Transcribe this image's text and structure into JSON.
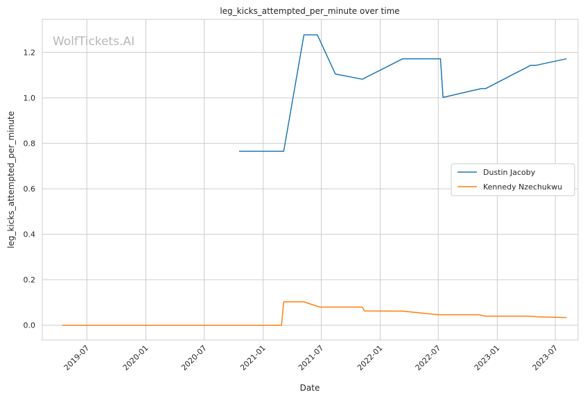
{
  "chart_data": {
    "type": "line",
    "title": "leg_kicks_attempted_per_minute over time",
    "xlabel": "Date",
    "ylabel": "leg_kicks_attempted_per_minute",
    "watermark": "WolfTickets.AI",
    "xlim": [
      "2019-02-12",
      "2023-09-10"
    ],
    "ylim": [
      -0.065,
      1.345
    ],
    "xticks": [
      "2019-07",
      "2020-01",
      "2020-07",
      "2021-01",
      "2021-07",
      "2022-01",
      "2022-07",
      "2023-01",
      "2023-07"
    ],
    "yticks": [
      "0.0",
      "0.2",
      "0.4",
      "0.6",
      "0.8",
      "1.0",
      "1.2"
    ],
    "grid": true,
    "legend_position": "center-right",
    "series": [
      {
        "name": "Dustin Jacoby",
        "color": "#1f77b4",
        "points": [
          [
            "2020-10-18",
            0.765
          ],
          [
            "2021-03-06",
            0.765
          ],
          [
            "2021-05-08",
            1.277
          ],
          [
            "2021-06-19",
            1.277
          ],
          [
            "2021-08-14",
            1.105
          ],
          [
            "2021-11-06",
            1.082
          ],
          [
            "2022-03-12",
            1.172
          ],
          [
            "2022-07-08",
            1.172
          ],
          [
            "2022-07-16",
            1.002
          ],
          [
            "2022-11-12",
            1.041
          ],
          [
            "2022-11-26",
            1.041
          ],
          [
            "2023-04-15",
            1.143
          ],
          [
            "2023-05-01",
            1.143
          ],
          [
            "2023-08-05",
            1.172
          ]
        ]
      },
      {
        "name": "Kennedy Nzechukwu",
        "color": "#ff7f0e",
        "points": [
          [
            "2019-04-15",
            0.0
          ],
          [
            "2021-02-27",
            0.0
          ],
          [
            "2021-03-06",
            0.103
          ],
          [
            "2021-05-08",
            0.103
          ],
          [
            "2021-06-26",
            0.08
          ],
          [
            "2021-11-06",
            0.08
          ],
          [
            "2021-11-13",
            0.063
          ],
          [
            "2022-03-12",
            0.062
          ],
          [
            "2022-07-02",
            0.046
          ],
          [
            "2022-11-05",
            0.046
          ],
          [
            "2022-11-26",
            0.04
          ],
          [
            "2023-04-15",
            0.04
          ],
          [
            "2023-05-06",
            0.037
          ],
          [
            "2023-08-05",
            0.034
          ]
        ]
      }
    ]
  }
}
